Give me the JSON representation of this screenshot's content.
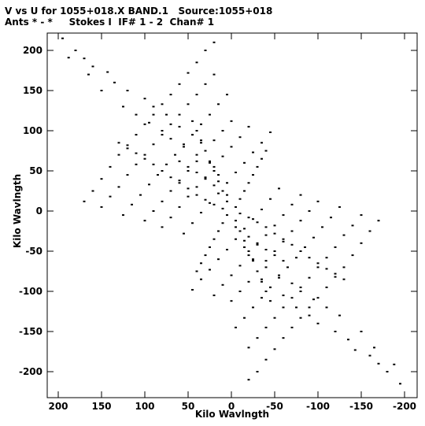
{
  "chart_data": {
    "type": "scatter",
    "title": "V vs U for 1055+018.X BAND.1   Source:1055+018",
    "subtitle": "Ants * - *     Stokes I  IF# 1 - 2  Chan# 1",
    "xlabel": "Kilo Wavlngth",
    "ylabel": "Kilo Wavlngth",
    "xlim": [
      200,
      -200
    ],
    "ylim": [
      -220,
      220
    ],
    "x_ticks": [
      200,
      150,
      100,
      50,
      0,
      -50,
      -100,
      -150,
      -200
    ],
    "y_ticks": [
      200,
      150,
      100,
      50,
      0,
      -50,
      -100,
      -150,
      -200
    ],
    "grid": false,
    "series": [
      {
        "symmetric": true,
        "comment": "uv coverage points; the conjugate point (-u,-v) is also plotted for each",
        "points": [
          [
            195,
            215
          ],
          [
            188,
            191
          ],
          [
            180,
            200
          ],
          [
            170,
            190
          ],
          [
            165,
            170
          ],
          [
            160,
            180
          ],
          [
            150,
            150
          ],
          [
            143,
            173
          ],
          [
            135,
            160
          ],
          [
            125,
            130
          ],
          [
            120,
            150
          ],
          [
            110,
            120
          ],
          [
            100,
            140
          ],
          [
            95,
            110
          ],
          [
            90,
            130
          ],
          [
            80,
            100
          ],
          [
            75,
            120
          ],
          [
            70,
            90
          ],
          [
            60,
            105
          ],
          [
            55,
            80
          ],
          [
            45,
            95
          ],
          [
            40,
            70
          ],
          [
            35,
            85
          ],
          [
            25,
            60
          ],
          [
            15,
            45
          ],
          [
            5,
            20
          ],
          [
            -5,
            5
          ],
          [
            170,
            12
          ],
          [
            160,
            25
          ],
          [
            150,
            40
          ],
          [
            140,
            55
          ],
          [
            130,
            70
          ],
          [
            120,
            82
          ],
          [
            110,
            95
          ],
          [
            100,
            108
          ],
          [
            90,
            120
          ],
          [
            80,
            133
          ],
          [
            70,
            145
          ],
          [
            60,
            158
          ],
          [
            50,
            172
          ],
          [
            40,
            185
          ],
          [
            30,
            200
          ],
          [
            20,
            210
          ],
          [
            150,
            5
          ],
          [
            140,
            18
          ],
          [
            130,
            30
          ],
          [
            120,
            45
          ],
          [
            110,
            58
          ],
          [
            100,
            70
          ],
          [
            90,
            83
          ],
          [
            80,
            95
          ],
          [
            70,
            108
          ],
          [
            60,
            120
          ],
          [
            50,
            133
          ],
          [
            40,
            145
          ],
          [
            30,
            158
          ],
          [
            20,
            170
          ],
          [
            125,
            -5
          ],
          [
            115,
            8
          ],
          [
            105,
            20
          ],
          [
            95,
            33
          ],
          [
            85,
            45
          ],
          [
            75,
            58
          ],
          [
            65,
            70
          ],
          [
            55,
            83
          ],
          [
            45,
            95
          ],
          [
            35,
            108
          ],
          [
            25,
            120
          ],
          [
            15,
            133
          ],
          [
            5,
            145
          ],
          [
            100,
            -12
          ],
          [
            90,
            0
          ],
          [
            80,
            12
          ],
          [
            70,
            25
          ],
          [
            60,
            38
          ],
          [
            50,
            50
          ],
          [
            40,
            62
          ],
          [
            30,
            75
          ],
          [
            20,
            88
          ],
          [
            10,
            100
          ],
          [
            0,
            112
          ],
          [
            80,
            -20
          ],
          [
            70,
            -8
          ],
          [
            60,
            5
          ],
          [
            50,
            18
          ],
          [
            40,
            30
          ],
          [
            30,
            42
          ],
          [
            20,
            55
          ],
          [
            10,
            68
          ],
          [
            0,
            80
          ],
          [
            -10,
            92
          ],
          [
            -20,
            105
          ],
          [
            55,
            -28
          ],
          [
            45,
            -15
          ],
          [
            35,
            -2
          ],
          [
            25,
            10
          ],
          [
            15,
            22
          ],
          [
            5,
            35
          ],
          [
            -5,
            48
          ],
          [
            -15,
            60
          ],
          [
            -25,
            73
          ],
          [
            -35,
            85
          ],
          [
            -45,
            98
          ],
          [
            100,
            65
          ],
          [
            90,
            58
          ],
          [
            80,
            50
          ],
          [
            70,
            42
          ],
          [
            60,
            35
          ],
          [
            50,
            28
          ],
          [
            40,
            20
          ],
          [
            30,
            14
          ],
          [
            20,
            8
          ],
          [
            10,
            3
          ],
          [
            130,
            85
          ],
          [
            120,
            78
          ],
          [
            110,
            72
          ],
          [
            60,
            62
          ],
          [
            50,
            55
          ],
          [
            40,
            48
          ],
          [
            30,
            40
          ],
          [
            20,
            32
          ],
          [
            10,
            25
          ],
          [
            -5,
            -12
          ],
          [
            -10,
            -25
          ],
          [
            -15,
            -37
          ],
          [
            -20,
            -50
          ],
          [
            -25,
            -62
          ],
          [
            -30,
            -75
          ],
          [
            -35,
            -88
          ],
          [
            -40,
            -100
          ],
          [
            -45,
            -112
          ],
          [
            -10,
            15
          ],
          [
            -15,
            25
          ],
          [
            -20,
            35
          ],
          [
            -25,
            45
          ],
          [
            -30,
            55
          ],
          [
            -35,
            65
          ],
          [
            -40,
            75
          ]
        ]
      }
    ]
  }
}
